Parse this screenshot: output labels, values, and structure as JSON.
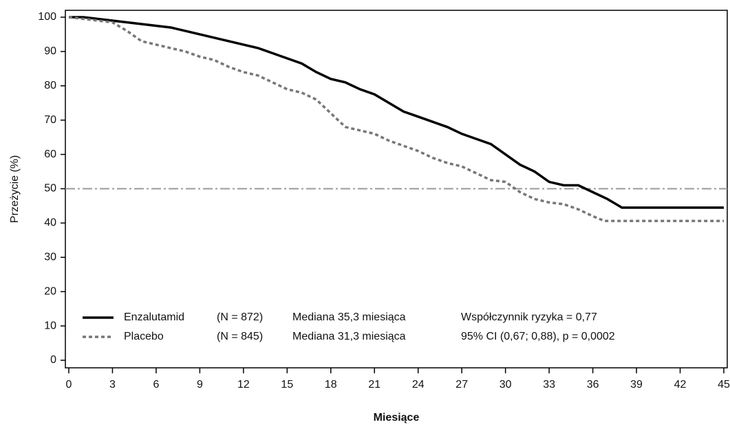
{
  "chart_data": {
    "type": "line",
    "xlabel": "Miesiące",
    "ylabel": "Przeżycie (%)",
    "xlim": [
      0,
      45
    ],
    "ylim": [
      0,
      100
    ],
    "xticks": [
      0,
      3,
      6,
      9,
      12,
      15,
      18,
      21,
      24,
      27,
      30,
      33,
      36,
      39,
      42,
      45
    ],
    "yticks": [
      0,
      10,
      20,
      30,
      40,
      50,
      60,
      70,
      80,
      90,
      100
    ],
    "reference_line": {
      "value": 50,
      "color": "#999999"
    },
    "series": [
      {
        "name": "Enzalutamid",
        "color": "#000000",
        "style": "solid",
        "x": [
          0,
          1,
          2,
          3,
          4,
          5,
          6,
          7,
          8,
          9,
          10,
          11,
          12,
          13,
          14,
          15,
          16,
          17,
          18,
          19,
          20,
          21,
          22,
          23,
          24,
          25,
          26,
          27,
          28,
          29,
          30,
          31,
          32,
          33,
          34,
          35,
          36,
          37,
          38,
          45
        ],
        "values": [
          100,
          100,
          99.5,
          99,
          98.5,
          98,
          97.5,
          97,
          96,
          95,
          94,
          93,
          92,
          91,
          89.5,
          88,
          86.5,
          84,
          82,
          81,
          79,
          77.5,
          75,
          72.5,
          71,
          69.5,
          68,
          66,
          64.5,
          63,
          60,
          57,
          55,
          52,
          51,
          51,
          49,
          47,
          44.5,
          44.5
        ]
      },
      {
        "name": "Placebo",
        "color": "#777777",
        "style": "dotted",
        "x": [
          0,
          3,
          4,
          5,
          6,
          7,
          8,
          9,
          10,
          11,
          12,
          13,
          14,
          15,
          16,
          17,
          18,
          19,
          20,
          21,
          22,
          23,
          24,
          25,
          26,
          27,
          28,
          29,
          30,
          31,
          32,
          33,
          34,
          35,
          36,
          36.8,
          45
        ],
        "values": [
          100,
          98.5,
          96,
          93,
          92,
          91,
          90,
          88.5,
          87.5,
          85.5,
          84,
          83,
          81,
          79,
          78,
          76,
          72,
          68,
          67,
          66,
          64,
          62.5,
          61,
          59,
          57.5,
          56.5,
          54.5,
          52.5,
          52,
          49,
          47,
          46,
          45.5,
          44,
          42,
          40.6,
          40.6
        ]
      }
    ],
    "annotations": [
      [
        "(N = 872)",
        "Mediana 35,3 miesiąca",
        "Współczynnik ryzyka = 0,77"
      ],
      [
        "(N = 845)",
        "Mediana 31,3 miesiąca",
        "95% CI (0,67; 0,88), p = 0,0002"
      ]
    ]
  }
}
